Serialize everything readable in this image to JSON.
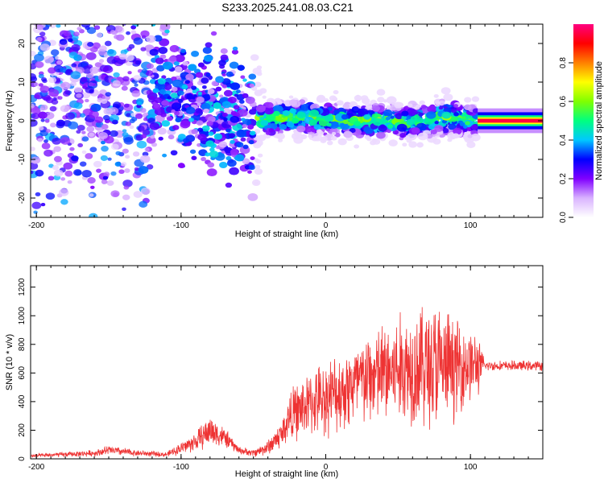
{
  "title": "S233.2025.241.08.03.C21",
  "chart_data": [
    {
      "type": "heatmap",
      "name": "spectrogram",
      "xlabel": "Height of straight line (km)",
      "ylabel": "Frequency (Hz)",
      "xlim": [
        -204,
        150
      ],
      "ylim": [
        -25,
        25
      ],
      "xticks": [
        -200,
        -100,
        0,
        100
      ],
      "yticks": [
        -20,
        -10,
        0,
        10,
        20
      ],
      "colorbar": {
        "label": "Normalized spectral amplitude",
        "range": [
          0,
          1
        ],
        "ticks": [
          0.0,
          0.2,
          0.4,
          0.6,
          0.8
        ],
        "colors": [
          "#ffffff",
          "#d9b3ff",
          "#8000ff",
          "#0000ff",
          "#00c8ff",
          "#00ff80",
          "#80ff00",
          "#ffff00",
          "#ff8000",
          "#ff0000",
          "#ff0080"
        ]
      },
      "center_track": {
        "x": [
          -200,
          -150,
          -120,
          -100,
          -80,
          -60,
          -50,
          -40,
          -20,
          0,
          20,
          40,
          60,
          80,
          105,
          150
        ],
        "y": [
          8,
          5,
          8,
          6,
          2,
          0,
          1,
          0.5,
          1,
          0.5,
          0,
          0,
          -0.5,
          1,
          0,
          0
        ]
      }
    },
    {
      "type": "line",
      "name": "snr",
      "xlabel": "Height of straight line (km)",
      "ylabel": "SNR (10 * v/v)",
      "xlim": [
        -204,
        150
      ],
      "ylim": [
        0,
        1350
      ],
      "xticks": [
        -200,
        -100,
        0,
        100
      ],
      "yticks": [
        0,
        200,
        400,
        600,
        800,
        1000,
        1200
      ],
      "color": "#ee3333",
      "envelope": {
        "x": [
          -204,
          -160,
          -150,
          -130,
          -110,
          -90,
          -80,
          -70,
          -60,
          -50,
          -40,
          -30,
          -25,
          -20,
          -10,
          0,
          10,
          20,
          30,
          40,
          50,
          60,
          70,
          75,
          80,
          90,
          100,
          105,
          110,
          130,
          150
        ],
        "mean": [
          20,
          40,
          60,
          40,
          30,
          120,
          200,
          150,
          60,
          40,
          80,
          180,
          300,
          330,
          390,
          430,
          470,
          520,
          560,
          600,
          620,
          650,
          660,
          650,
          640,
          650,
          660,
          650,
          650,
          650,
          650
        ],
        "amp": [
          15,
          25,
          40,
          25,
          20,
          80,
          130,
          80,
          30,
          30,
          60,
          120,
          200,
          230,
          260,
          300,
          320,
          360,
          380,
          420,
          450,
          480,
          520,
          560,
          480,
          400,
          300,
          250,
          40,
          40,
          40
        ]
      }
    }
  ]
}
